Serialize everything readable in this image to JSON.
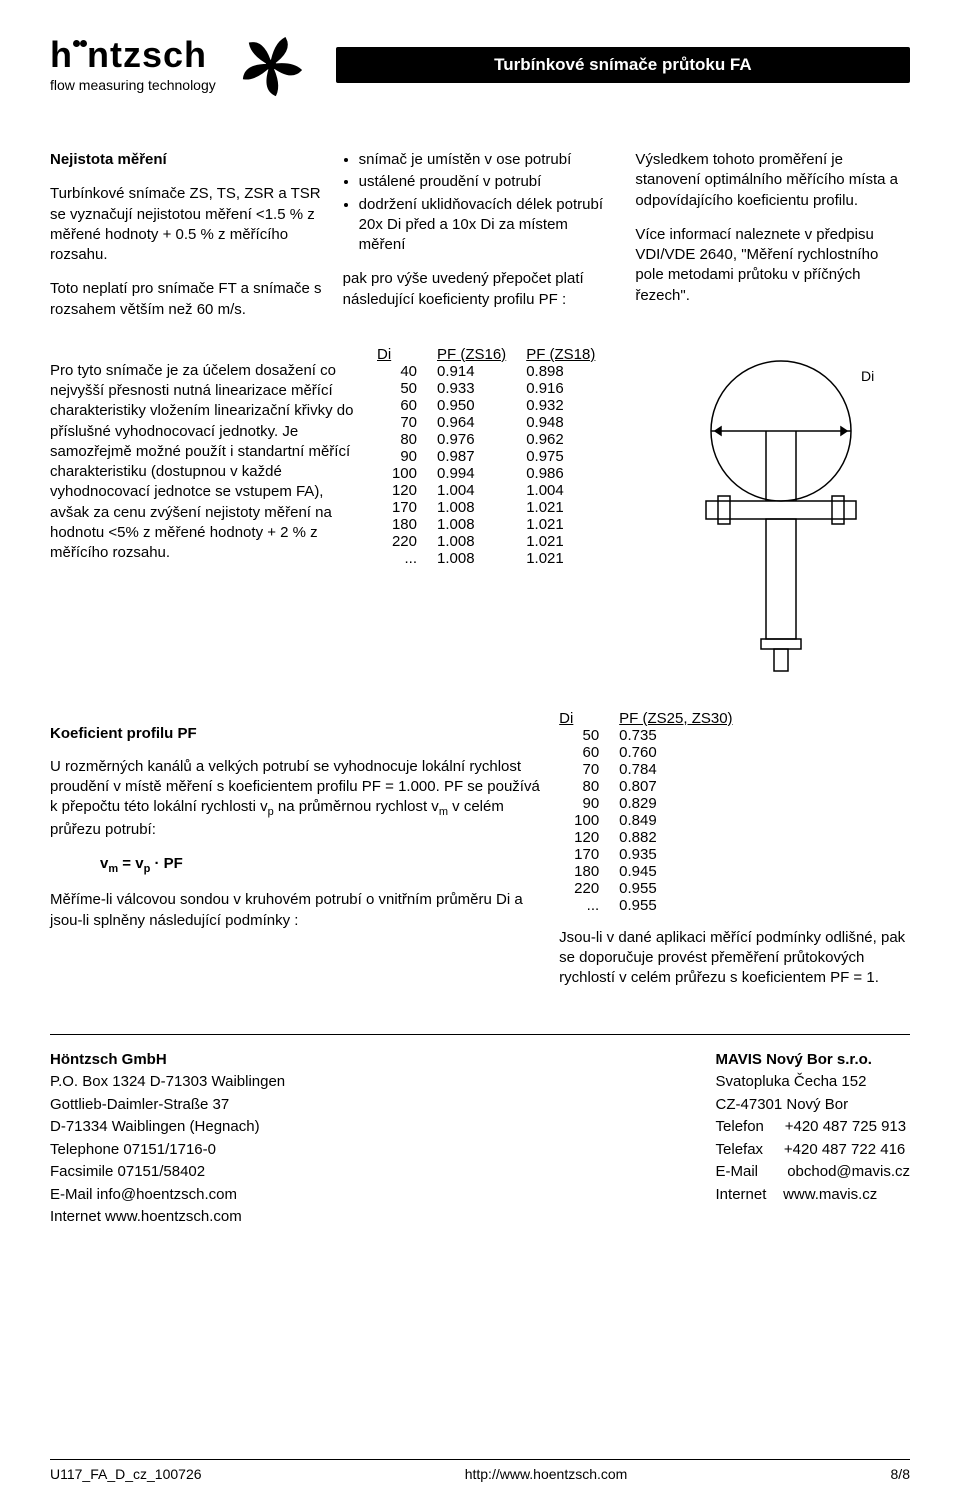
{
  "header": {
    "logo_main": "hontzsch",
    "logo_sub": "flow measuring technology",
    "title": "Turbínkové snímače průtoku  FA"
  },
  "col1": {
    "h": "Nejistota měření",
    "p1": "Turbínkové snímače ZS, TS, ZSR a TSR se vyznačují nejistotou měření <1.5 %  z měřené hodnoty + 0.5 % z měřícího rozsahu.",
    "p2": "Toto neplatí pro snímače FT a snímače s rozsahem větším než 60 m/s.",
    "p3": "Pro tyto snímače je za účelem dosažení co nejvyšší přesnosti nutná linearizace měřící charakteristiky vložením linearizační křivky do příslušné vyhodnocovací jednotky. Je samozřejmě možné použít i standartní měřící charakteristiku (dostupnou v každé vyhodnocovací jednotce se vstupem FA), avšak za cenu zvýšení nejistoty měření na hodnotu <5% z měřené hodnoty + 2 % z měřícího rozsahu."
  },
  "col2": {
    "li1": "snímač je umístěn v ose potrubí",
    "li2": "ustálené proudění v potrubí",
    "li3": "dodržení uklidňovacích délek potrubí 20x Di před a 10x Di za místem měření",
    "p1": "pak pro výše uvedený přepočet platí následující koeficienty profilu PF :"
  },
  "col3": {
    "p1": "Výsledkem  tohoto proměření je stanovení optimálního měřícího místa a odpovídajícího koeficientu profilu.",
    "p2": "Více informací naleznete v předpisu VDI/VDE 2640, \"Měření rychlostního pole metodami průtoku v příčných řezech\"."
  },
  "table1": {
    "headers": [
      "Di",
      "PF (ZS16)",
      "PF (ZS18)"
    ],
    "rows": [
      [
        "40",
        "0.914",
        "0.898"
      ],
      [
        "50",
        "0.933",
        "0.916"
      ],
      [
        "60",
        "0.950",
        "0.932"
      ],
      [
        "70",
        "0.964",
        "0.948"
      ],
      [
        "80",
        "0.976",
        "0.962"
      ],
      [
        "90",
        "0.987",
        "0.975"
      ],
      [
        "100",
        "0.994",
        "0.986"
      ],
      [
        "120",
        "1.004",
        "1.004"
      ],
      [
        "170",
        "1.008",
        "1.021"
      ],
      [
        "180",
        "1.008",
        "1.021"
      ],
      [
        "220",
        "1.008",
        "1.021"
      ],
      [
        "...",
        "1.008",
        "1.021"
      ]
    ]
  },
  "section3": {
    "h": "Koeficient profilu PF",
    "p1": "U rozměrných kanálů a velkých potrubí se vyhodnocuje lokální rychlost proudění v místě měření s koeficientem profilu PF = 1.000. PF se používá k přepočtu této lokální rychlosti vp na průměrnou rychlost vm v celém průřezu potrubí:",
    "eq": "vm = vp · PF",
    "p2": "Měříme-li válcovou sondou v kruhovém potrubí o vnitřním průměru Di a jsou-li splněny následující podmínky :"
  },
  "table2": {
    "headers": [
      "Di",
      "PF (ZS25, ZS30)"
    ],
    "rows": [
      [
        "50",
        "0.735"
      ],
      [
        "60",
        "0.760"
      ],
      [
        "70",
        "0.784"
      ],
      [
        "80",
        "0.807"
      ],
      [
        "90",
        "0.829"
      ],
      [
        "100",
        "0.849"
      ],
      [
        "120",
        "0.882"
      ],
      [
        "170",
        "0.935"
      ],
      [
        "180",
        "0.945"
      ],
      [
        "220",
        "0.955"
      ],
      [
        "...",
        "0.955"
      ]
    ],
    "p_after": "Jsou-li v dané aplikaci měřící podmínky odlišné, pak se doporučuje provést přeměření průtokových rychlostí v celém průřezu s koeficientem PF = 1."
  },
  "footer": {
    "left": {
      "name": "Höntzsch GmbH",
      "l1": "P.O. Box 1324 D-71303 Waiblingen",
      "l2": "Gottlieb-Daimler-Straße 37",
      "l3": "D-71334 Waiblingen (Hegnach)",
      "l4": "Telephone 07151/1716-0",
      "l5": "Facsimile  07151/58402",
      "l6": "E-Mail info@hoentzsch.com",
      "l7": "Internet www.hoentzsch.com"
    },
    "right": {
      "name": "MAVIS Nový Bor s.r.o.",
      "l1": "Svatopluka Čecha 152",
      "l2": "CZ-47301 Nový Bor",
      "l3k": "Telefon",
      "l3v": "+420 487 725 913",
      "l4k": "Telefax",
      "l4v": "+420 487 722 416",
      "l5k": "E-Mail",
      "l5v": "obchod@mavis.cz",
      "l6k": "Internet",
      "l6v": "www.mavis.cz"
    }
  },
  "bottom": {
    "doc": "U117_FA_D_cz_100726",
    "url": "http://www.hoentzsch.com",
    "page": "8/8"
  },
  "diagram": {
    "label": "Di"
  }
}
